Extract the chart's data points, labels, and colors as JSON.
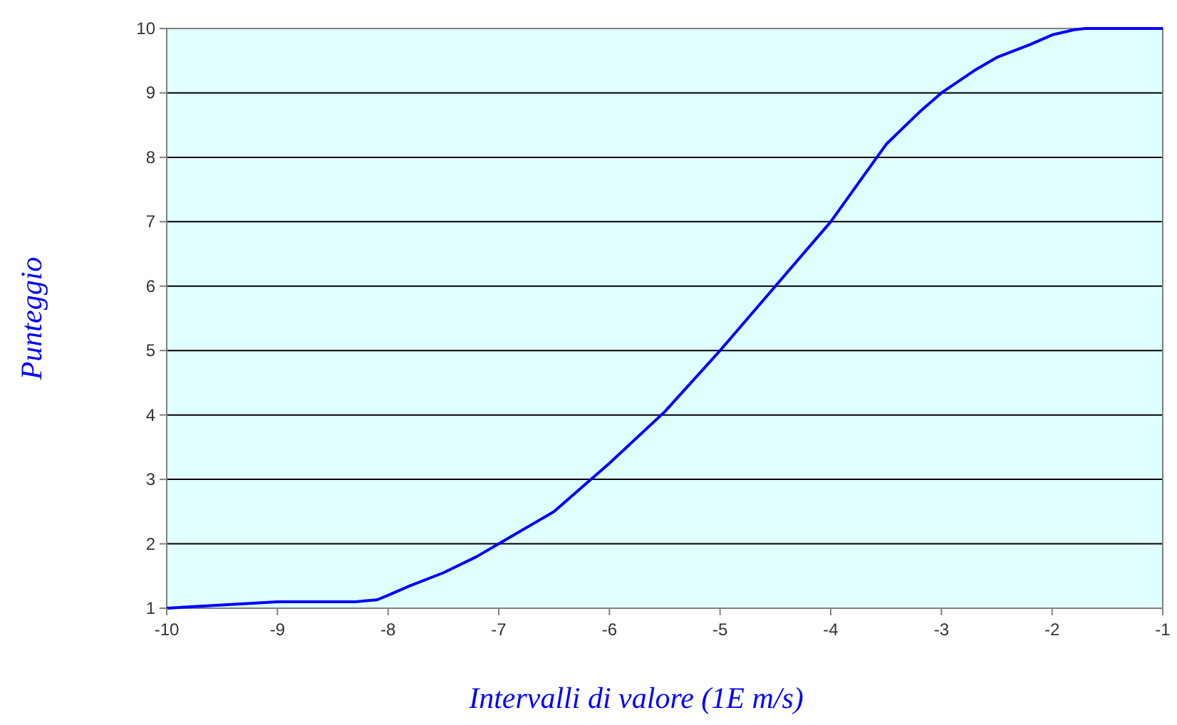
{
  "chart_data": {
    "type": "line",
    "xlabel": "Intervalli di valore (1E m/s)",
    "ylabel": "Punteggio",
    "series": [
      {
        "color": "#0000ff",
        "x": [
          -10,
          -9.5,
          -9,
          -8.5,
          -8.3,
          -8.1,
          -8,
          -7.8,
          -7.5,
          -7.2,
          -7,
          -6.5,
          -6,
          -5.5,
          -5,
          -4.5,
          -4,
          -3.5,
          -3.2,
          -3,
          -2.7,
          -2.5,
          -2.2,
          -2,
          -1.8,
          -1.7,
          -1.5,
          -1
        ],
        "values": [
          1,
          1.05,
          1.1,
          1.1,
          1.1,
          1.13,
          1.2,
          1.35,
          1.55,
          1.8,
          2,
          2.5,
          3.25,
          4.05,
          5,
          6,
          7,
          8.2,
          8.7,
          9,
          9.35,
          9.55,
          9.75,
          9.9,
          9.98,
          10,
          10,
          10
        ]
      }
    ],
    "xlim": [
      -10,
      -1
    ],
    "xticks": [
      -10,
      -9,
      -8,
      -7,
      -6,
      -5,
      -4,
      -3,
      -2,
      -1
    ],
    "ylim": [
      1,
      10
    ],
    "yticks": [
      1,
      2,
      3,
      4,
      5,
      6,
      7,
      8,
      9,
      10
    ],
    "grid": "y",
    "marker": "none",
    "line_style": "solid"
  }
}
